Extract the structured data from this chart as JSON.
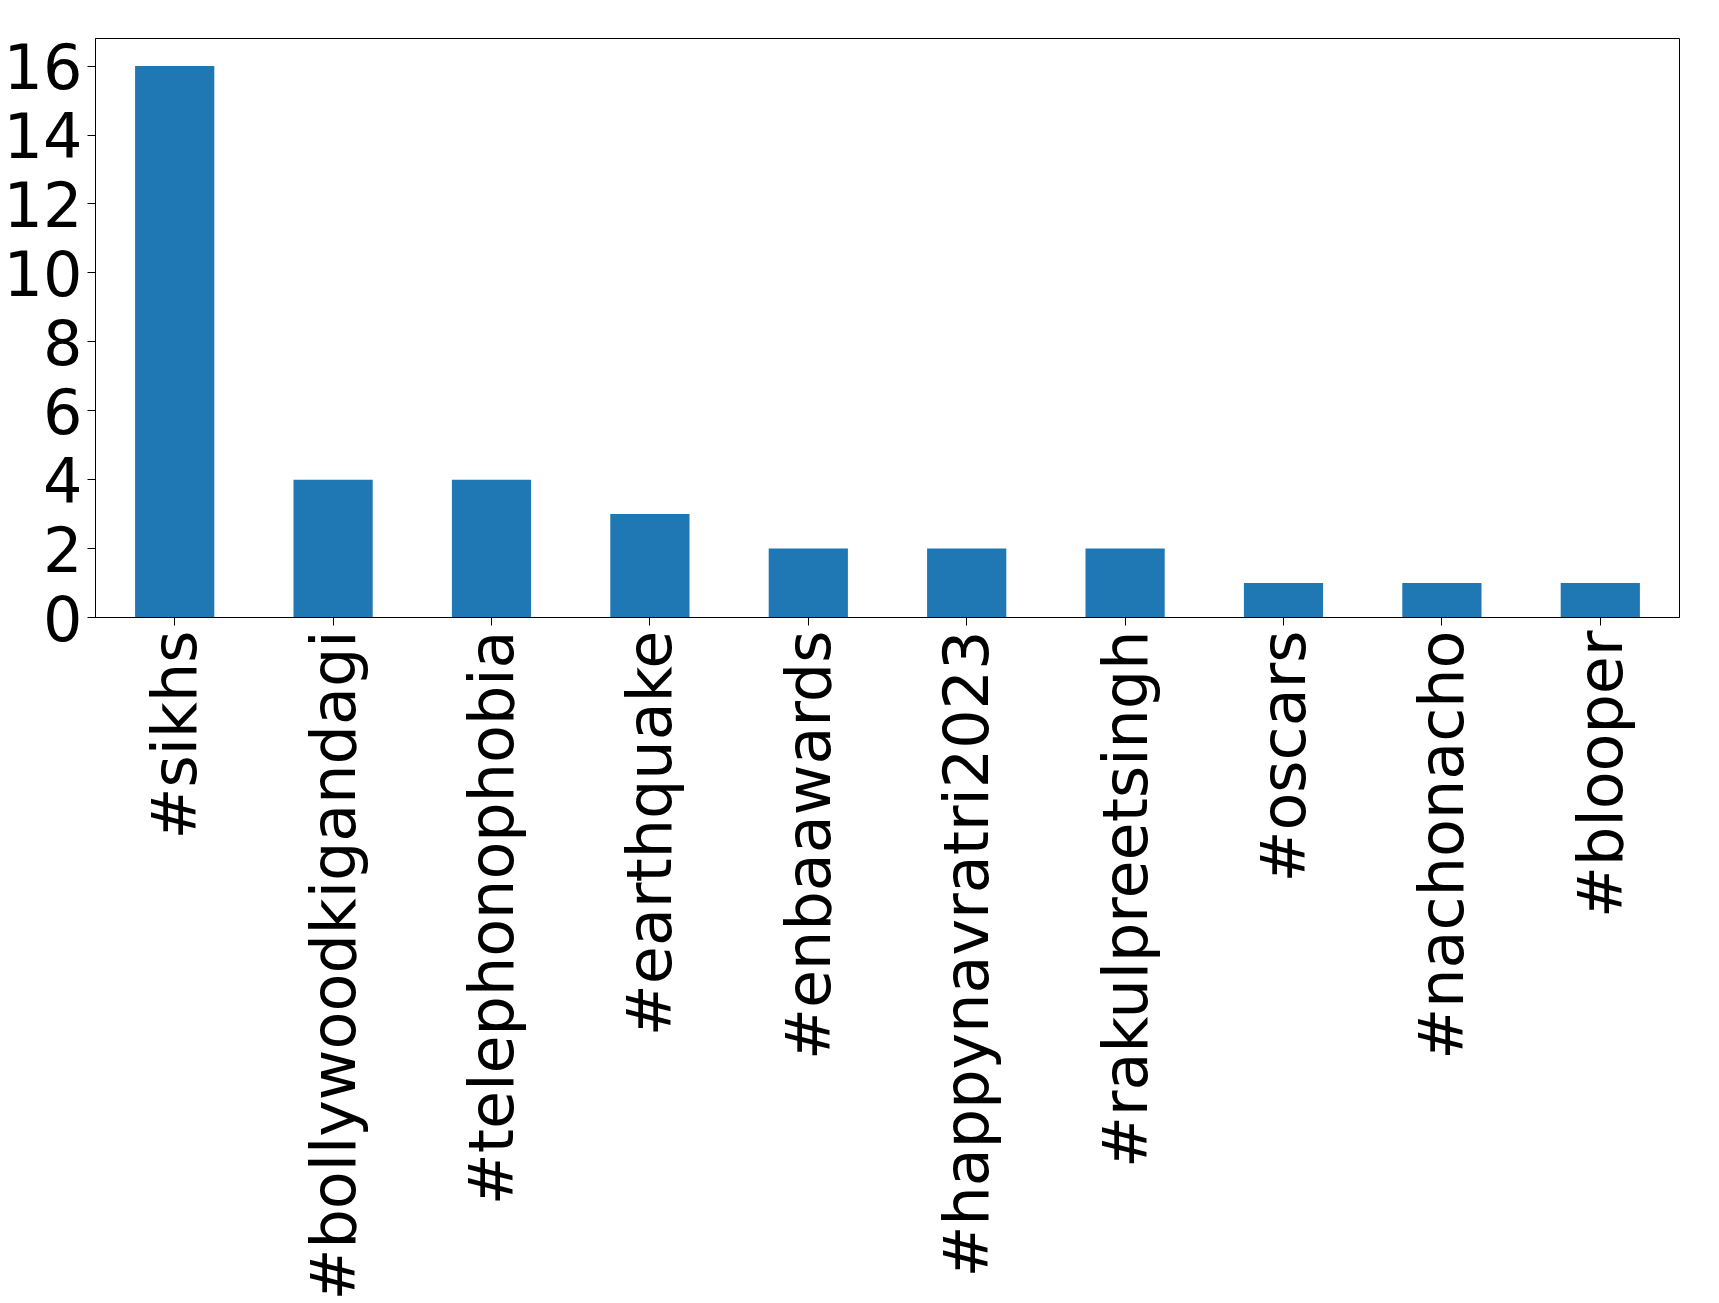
{
  "chart_data": {
    "type": "bar",
    "categories": [
      "#sikhs",
      "#bollywoodkigandagi",
      "#telephonophobia",
      "#earthquake",
      "#enbaawards",
      "#happynavratri2023",
      "#rakulpreetsingh",
      "#oscars",
      "#nachonacho",
      "#blooper"
    ],
    "values": [
      16,
      4,
      4,
      3,
      2,
      2,
      2,
      1,
      1,
      1
    ],
    "color": "#1f77b4",
    "ylim": [
      0,
      16.8
    ],
    "yticks": [
      0,
      2,
      4,
      6,
      8,
      10,
      12,
      14,
      16
    ],
    "grid": false
  }
}
